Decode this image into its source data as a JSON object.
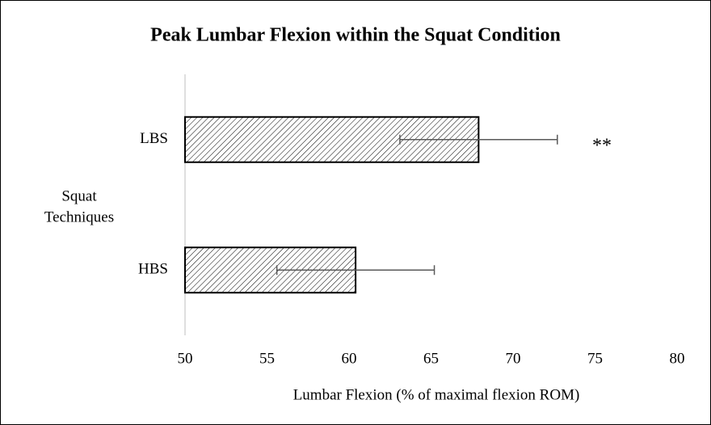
{
  "chart_data": {
    "type": "bar",
    "orientation": "horizontal",
    "title": "Peak Lumbar Flexion within the Squat Condition",
    "xlabel": "Lumbar Flexion (% of maximal flexion ROM)",
    "ylabel": [
      "Squat",
      "Techniques"
    ],
    "categories": [
      "LBS",
      "HBS"
    ],
    "values": [
      67.9,
      60.4
    ],
    "errors": [
      4.8,
      4.8
    ],
    "annotation": "**",
    "color": "#000000",
    "xlim": [
      50,
      80
    ],
    "xticks": [
      50,
      55,
      60,
      65,
      70,
      75,
      80
    ],
    "grid": false
  }
}
